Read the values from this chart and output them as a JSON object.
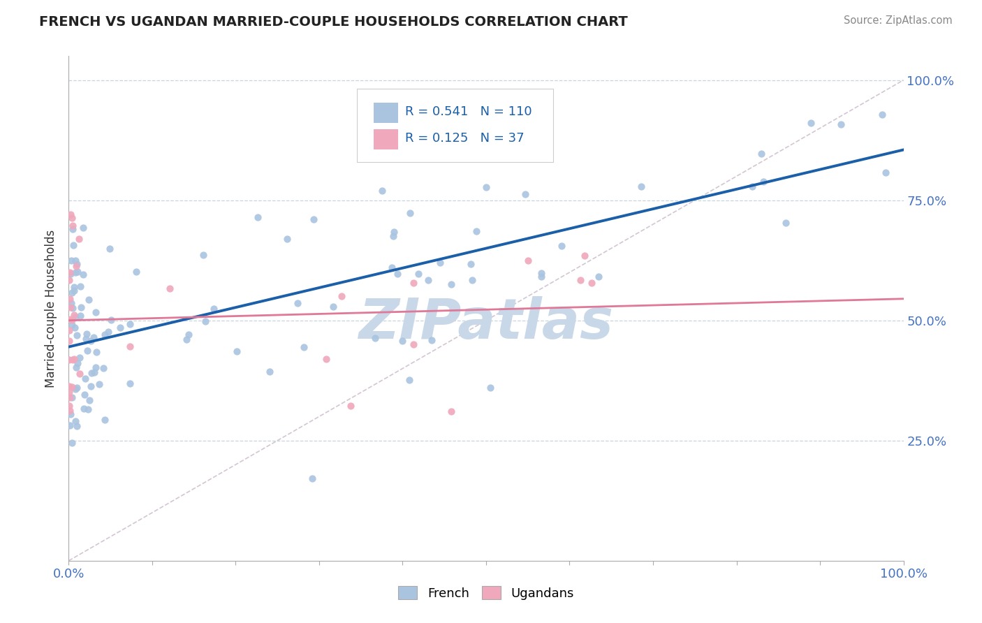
{
  "title": "FRENCH VS UGANDAN MARRIED-COUPLE HOUSEHOLDS CORRELATION CHART",
  "source": "Source: ZipAtlas.com",
  "ylabel": "Married-couple Households",
  "french_R": 0.541,
  "french_N": 110,
  "ugandan_R": 0.125,
  "ugandan_N": 37,
  "french_color": "#aac4e0",
  "ugandan_color": "#f0a8bc",
  "french_line_color": "#1a5fa8",
  "ugandan_line_color": "#e07898",
  "french_line_start_y": 0.445,
  "french_line_end_y": 0.855,
  "ugandan_line_start_y": 0.5,
  "ugandan_line_end_y": 0.545,
  "xlim": [
    0.0,
    1.0
  ],
  "ylim": [
    0.0,
    1.05
  ],
  "ytick_values": [
    0.25,
    0.5,
    0.75,
    1.0
  ],
  "ytick_labels": [
    "25.0%",
    "50.0%",
    "75.0%",
    "100.0%"
  ],
  "watermark_text": "ZIPatlas",
  "watermark_color": "#c8d8e8"
}
